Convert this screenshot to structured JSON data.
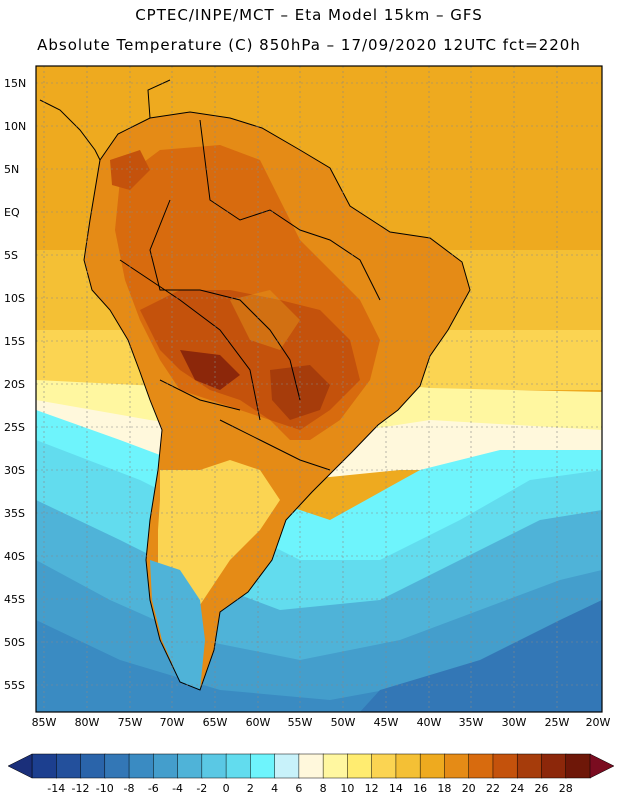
{
  "header": {
    "line1": "CPTEC/INPE/MCT –  Eta Model 15km – GFS",
    "line2": "Absolute Temperature (C) 850hPa – 17/09/2020 12UTC fct=220h"
  },
  "map": {
    "lat_labels": [
      "15N",
      "10N",
      "5N",
      "EQ",
      "5S",
      "10S",
      "15S",
      "20S",
      "25S",
      "30S",
      "35S",
      "40S",
      "45S",
      "50S",
      "55S"
    ],
    "lon_labels": [
      "85W",
      "80W",
      "75W",
      "70W",
      "65W",
      "60W",
      "55W",
      "50W",
      "45W",
      "40W",
      "35W",
      "30W",
      "25W",
      "20W"
    ],
    "lat_range": [
      17.5,
      -57.5
    ],
    "lon_range": [
      -86.5,
      -20.5
    ]
  },
  "colorbar": {
    "labels": [
      "-14",
      "-12",
      "-10",
      "-8",
      "-6",
      "-4",
      "-2",
      "0",
      "2",
      "4",
      "6",
      "8",
      "10",
      "12",
      "14",
      "16",
      "18",
      "20",
      "22",
      "24",
      "26",
      "28"
    ],
    "colors": [
      "#1c3f8f",
      "#23509c",
      "#2a64aa",
      "#3377b6",
      "#3a8bc2",
      "#449ecc",
      "#4fb3d8",
      "#5ac8e4",
      "#62dcee",
      "#6ef4fc",
      "#c8f2fa",
      "#fff8dc",
      "#fff7a0",
      "#ffec70",
      "#fbd452",
      "#f4c035",
      "#eeaa1f",
      "#e58b16",
      "#d86b0e",
      "#c4520c",
      "#a63c0b",
      "#8c270a",
      "#6e1708"
    ]
  }
}
